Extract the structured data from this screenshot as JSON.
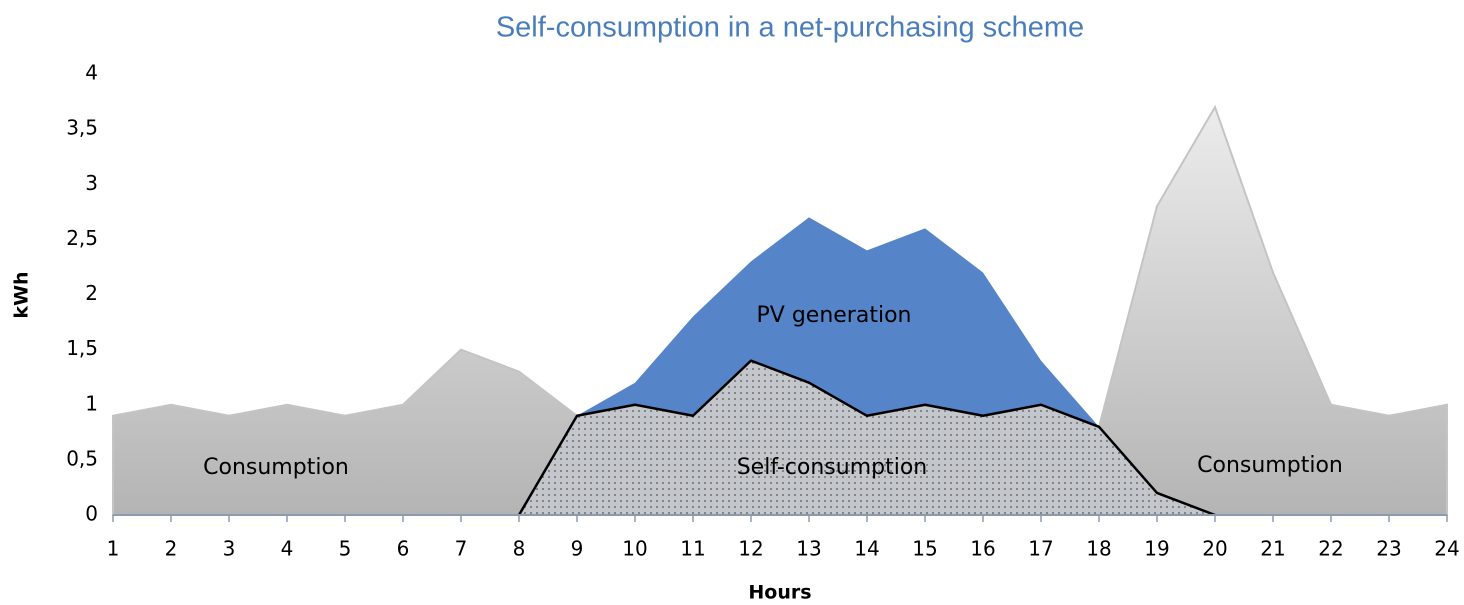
{
  "chart_data": {
    "type": "area",
    "title": "Self-consumption in a net-purchasing scheme",
    "x_label": "Hours",
    "y_label": "kWh",
    "xlim": [
      1,
      24
    ],
    "xticks": [
      1,
      2,
      3,
      4,
      5,
      6,
      7,
      8,
      9,
      10,
      11,
      12,
      13,
      14,
      15,
      16,
      17,
      18,
      19,
      20,
      21,
      22,
      23,
      24
    ],
    "ylim": [
      0,
      4
    ],
    "yticks": [
      0,
      {
        "value": 0.5,
        "label": "0,5"
      },
      1,
      {
        "value": 1.5,
        "label": "1,5"
      },
      2,
      {
        "value": 2.5,
        "label": "2,5"
      },
      3,
      {
        "value": 3.5,
        "label": "3,5"
      },
      4
    ],
    "series": [
      {
        "name": "Consumption",
        "color": "#c4c4c4",
        "x": [
          1,
          2,
          3,
          4,
          5,
          6,
          7,
          8,
          9,
          10,
          11,
          12,
          13,
          14,
          15,
          16,
          17,
          18,
          19,
          20,
          21,
          22,
          23,
          24
        ],
        "values": [
          0.9,
          1.0,
          0.9,
          1.0,
          0.9,
          1.0,
          1.5,
          1.3,
          0.9,
          1.0,
          0.9,
          1.4,
          1.2,
          0.9,
          1.0,
          0.9,
          1.0,
          0.8,
          2.8,
          3.7,
          2.2,
          1.0,
          0.9,
          1.0
        ]
      },
      {
        "name": "PV generation",
        "color": "#5585c8",
        "x": [
          9,
          10,
          11,
          12,
          13,
          14,
          15,
          16,
          17,
          18
        ],
        "values": [
          0.9,
          1.2,
          1.8,
          2.3,
          2.7,
          2.4,
          2.6,
          2.2,
          1.4,
          0.8
        ]
      },
      {
        "name": "Self-consumption",
        "color": "#b9bdc3",
        "x": [
          8,
          9,
          10,
          11,
          12,
          13,
          14,
          15,
          16,
          17,
          18,
          19,
          20
        ],
        "values": [
          0,
          0.9,
          1.0,
          0.9,
          1.4,
          1.2,
          0.9,
          1.0,
          0.9,
          1.0,
          0.8,
          0.2,
          0
        ]
      }
    ],
    "annotations": [
      "Consumption",
      "PV generation",
      "Self-consumption",
      "Consumption"
    ]
  }
}
